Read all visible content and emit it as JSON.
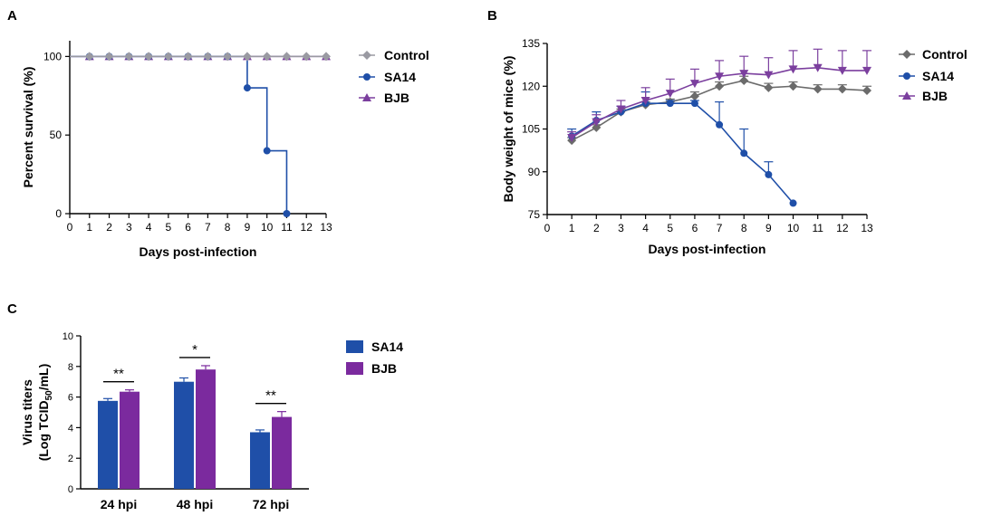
{
  "figure": {
    "panel_labels": [
      "A",
      "B",
      "C"
    ]
  },
  "chart_data": [
    {
      "panel": "A",
      "type": "line",
      "subtype": "step-survival",
      "xlabel": "Days post-infection",
      "ylabel": "Percent survival (%)",
      "xlim": [
        0,
        13
      ],
      "ylim": [
        0,
        110
      ],
      "xticks": [
        0,
        1,
        2,
        3,
        4,
        5,
        6,
        7,
        8,
        9,
        10,
        11,
        12,
        13
      ],
      "yticks": [
        0,
        50,
        100
      ],
      "legend_position": "right",
      "series": [
        {
          "name": "Control",
          "color": "#9a9aa2",
          "marker": "diamond",
          "x": [
            0,
            1,
            2,
            3,
            4,
            5,
            6,
            7,
            8,
            9,
            10,
            11,
            12,
            13
          ],
          "y": [
            100,
            100,
            100,
            100,
            100,
            100,
            100,
            100,
            100,
            100,
            100,
            100,
            100,
            100
          ]
        },
        {
          "name": "SA14",
          "color": "#1f4fa8",
          "marker": "circle",
          "x": [
            0,
            1,
            2,
            3,
            4,
            5,
            6,
            7,
            8,
            9,
            10,
            11
          ],
          "y": [
            100,
            100,
            100,
            100,
            100,
            100,
            100,
            100,
            100,
            80,
            40,
            0
          ]
        },
        {
          "name": "BJB",
          "color": "#7b3f9e",
          "marker": "triangle",
          "x": [
            0,
            1,
            2,
            3,
            4,
            5,
            6,
            7,
            8,
            9,
            10,
            11,
            12,
            13
          ],
          "y": [
            100,
            100,
            100,
            100,
            100,
            100,
            100,
            100,
            100,
            100,
            100,
            100,
            100,
            100
          ]
        }
      ]
    },
    {
      "panel": "B",
      "type": "line",
      "xlabel": "Days post-infection",
      "ylabel": "Body weight of mice (%)",
      "xlim": [
        0,
        13
      ],
      "ylim": [
        75,
        135
      ],
      "xticks": [
        0,
        1,
        2,
        3,
        4,
        5,
        6,
        7,
        8,
        9,
        10,
        11,
        12,
        13
      ],
      "yticks": [
        75,
        90,
        105,
        120,
        135
      ],
      "legend_position": "right",
      "series": [
        {
          "name": "Control",
          "color": "#6b6b6b",
          "marker": "diamond",
          "x": [
            1,
            2,
            3,
            4,
            5,
            6,
            7,
            8,
            9,
            10,
            11,
            12,
            13
          ],
          "y": [
            101,
            105.5,
            111,
            113.5,
            114.5,
            116.5,
            120,
            122,
            119.5,
            120,
            119,
            119,
            118.5
          ],
          "err": [
            1,
            1,
            1,
            1,
            1,
            1.5,
            1.5,
            1.5,
            1.5,
            1.5,
            1.5,
            1.5,
            1.5
          ]
        },
        {
          "name": "SA14",
          "color": "#1f4fa8",
          "marker": "circle",
          "x": [
            1,
            2,
            3,
            4,
            5,
            6,
            7,
            8,
            9,
            10
          ],
          "y": [
            102.5,
            108,
            111,
            114,
            114,
            114,
            106.5,
            96.5,
            89,
            79
          ],
          "err": [
            2.5,
            3,
            2,
            4,
            1,
            1,
            8,
            8.5,
            4.5,
            0
          ]
        },
        {
          "name": "BJB",
          "color": "#7b3f9e",
          "marker": "triangle",
          "x": [
            1,
            2,
            3,
            4,
            5,
            6,
            7,
            8,
            9,
            10,
            11,
            12,
            13
          ],
          "y": [
            102,
            107.5,
            112,
            115,
            117.5,
            121,
            123.5,
            124.5,
            124,
            126,
            126.5,
            125.5,
            125.5
          ],
          "err": [
            2,
            2.5,
            3,
            4.5,
            5,
            5,
            5.5,
            6,
            6,
            6.5,
            6.5,
            7,
            7
          ]
        }
      ]
    },
    {
      "panel": "C",
      "type": "bar",
      "categories": [
        "24 hpi",
        "48 hpi",
        "72 hpi"
      ],
      "ylabel_line1": "Virus titers",
      "ylabel_line2_prefix": "(Log TCID",
      "ylabel_line2_sub": "50",
      "ylabel_line2_suffix": "/mL)",
      "ylim": [
        0,
        10
      ],
      "yticks": [
        0,
        2,
        4,
        6,
        8,
        10
      ],
      "legend_position": "right",
      "series": [
        {
          "name": "SA14",
          "color": "#1f4fa8",
          "values": [
            5.75,
            7.0,
            3.7
          ],
          "err": [
            0.15,
            0.25,
            0.15
          ]
        },
        {
          "name": "BJB",
          "color": "#7b2a9e",
          "values": [
            6.35,
            7.8,
            4.7
          ],
          "err": [
            0.12,
            0.25,
            0.35
          ]
        }
      ],
      "significance": [
        "**",
        "*",
        "**"
      ]
    }
  ]
}
